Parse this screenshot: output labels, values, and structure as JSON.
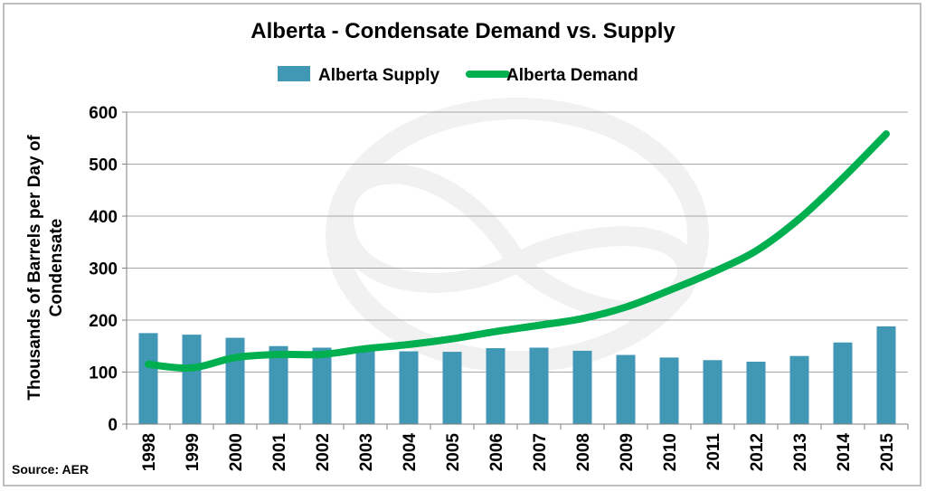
{
  "chart_data": {
    "type": "bar",
    "title": "Alberta - Condensate Demand vs. Supply",
    "ylabel_lines": [
      "Thousands of Barrels per Day of",
      "Condensate"
    ],
    "xlabel": "",
    "ylim": [
      0,
      600
    ],
    "yticks": [
      0,
      100,
      200,
      300,
      400,
      500,
      600
    ],
    "grid": true,
    "legend_position": "top",
    "categories": [
      "1998",
      "1999",
      "2000",
      "2001",
      "2002",
      "2003",
      "2004",
      "2005",
      "2006",
      "2007",
      "2008",
      "2009",
      "2010",
      "2011",
      "2012",
      "2013",
      "2014",
      "2015"
    ],
    "series": [
      {
        "name": "Alberta Supply",
        "type": "bar",
        "color": "#4198B4",
        "values": [
          175,
          172,
          166,
          150,
          147,
          143,
          140,
          139,
          146,
          147,
          141,
          133,
          128,
          123,
          120,
          131,
          157,
          188
        ]
      },
      {
        "name": "Alberta Demand",
        "type": "line",
        "color": "#00B050",
        "values": [
          115,
          108,
          128,
          134,
          134,
          145,
          153,
          164,
          178,
          190,
          203,
          225,
          257,
          292,
          333,
          395,
          473,
          558
        ]
      }
    ],
    "source": "Source: AER",
    "watermark": "infinity-logo"
  }
}
